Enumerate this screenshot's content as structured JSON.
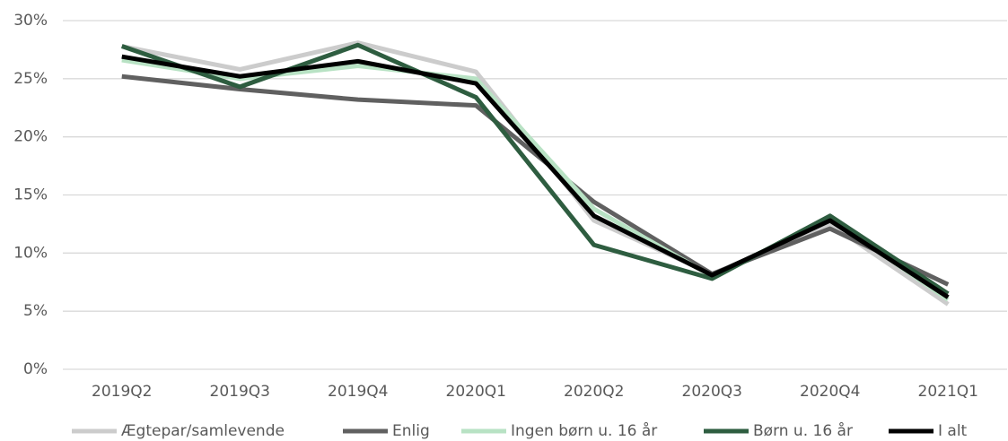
{
  "chart_data": {
    "type": "line",
    "categories": [
      "2019Q2",
      "2019Q3",
      "2019Q4",
      "2020Q1",
      "2020Q2",
      "2020Q3",
      "2020Q4",
      "2021Q1"
    ],
    "series": [
      {
        "name": "Ægtepar/samlevende",
        "color": "#cccccc",
        "values": [
          27.8,
          25.8,
          28.1,
          25.6,
          12.8,
          8.2,
          12.5,
          5.6
        ]
      },
      {
        "name": "Enlig",
        "color": "#606060",
        "values": [
          25.2,
          24.1,
          23.2,
          22.7,
          14.4,
          8.2,
          12.1,
          7.3
        ]
      },
      {
        "name": "Ingen børn u. 16 år",
        "color": "#b8e2c4",
        "values": [
          26.6,
          25.0,
          26.1,
          25.0,
          13.8,
          8.0,
          13.0,
          6.0
        ]
      },
      {
        "name": "Børn u. 16 år",
        "color": "#2e5d40",
        "values": [
          27.8,
          24.3,
          27.9,
          23.4,
          10.7,
          7.8,
          13.2,
          6.5
        ]
      },
      {
        "name": "I alt",
        "color": "#000000",
        "values": [
          26.9,
          25.2,
          26.5,
          24.6,
          13.2,
          8.1,
          12.8,
          6.2
        ]
      }
    ],
    "ylim": [
      0,
      30
    ],
    "yticks": [
      {
        "value": 0,
        "label": "0%"
      },
      {
        "value": 5,
        "label": "5%"
      },
      {
        "value": 10,
        "label": "10%"
      },
      {
        "value": 15,
        "label": "15%"
      },
      {
        "value": 20,
        "label": "20%"
      },
      {
        "value": 25,
        "label": "25%"
      },
      {
        "value": 30,
        "label": "30%"
      }
    ],
    "grid": true,
    "legend": "bottom"
  }
}
